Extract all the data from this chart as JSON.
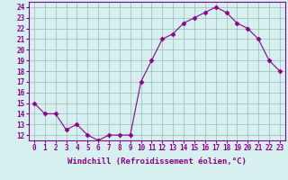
{
  "x": [
    0,
    1,
    2,
    3,
    4,
    5,
    6,
    7,
    8,
    9,
    10,
    11,
    12,
    13,
    14,
    15,
    16,
    17,
    18,
    19,
    20,
    21,
    22,
    23
  ],
  "y": [
    15,
    14,
    14,
    12.5,
    13,
    12,
    11.5,
    12,
    12,
    12,
    17,
    19,
    21,
    21.5,
    22.5,
    23,
    23.5,
    24,
    23.5,
    22.5,
    22,
    21,
    19,
    18
  ],
  "line_color": "#8B008B",
  "marker": "D",
  "marker_size": 2.5,
  "bg_color": "#d6f0f0",
  "grid_color": "#9bbaba",
  "xlabel": "Windchill (Refroidissement éolien,°C)",
  "ylabel_ticks": [
    12,
    13,
    14,
    15,
    16,
    17,
    18,
    19,
    20,
    21,
    22,
    23,
    24
  ],
  "ylim": [
    11.5,
    24.5
  ],
  "xlim": [
    -0.5,
    23.5
  ],
  "xticks": [
    0,
    1,
    2,
    3,
    4,
    5,
    6,
    7,
    8,
    9,
    10,
    11,
    12,
    13,
    14,
    15,
    16,
    17,
    18,
    19,
    20,
    21,
    22,
    23
  ],
  "xlabel_fontsize": 6.5,
  "tick_fontsize": 5.5,
  "label_color": "#8B008B",
  "spine_color": "#8B008B",
  "linewidth": 0.8
}
